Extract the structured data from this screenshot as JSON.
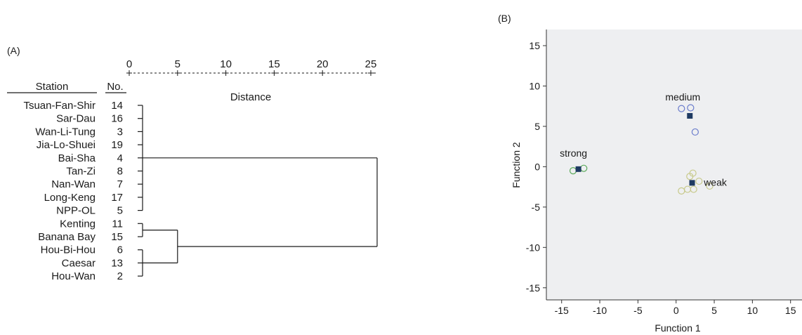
{
  "chart_data": [
    {
      "type": "dendrogram",
      "panel_label": "(A)",
      "xlabel": "Distance",
      "xticks": [
        0,
        5,
        10,
        15,
        20,
        25
      ],
      "xlim": [
        0,
        25
      ],
      "header_station": "Station",
      "header_no": "No.",
      "leaves": [
        {
          "station": "Tsuan-Fan-Shir",
          "no": "14"
        },
        {
          "station": "Sar-Dau",
          "no": "16"
        },
        {
          "station": "Wan-Li-Tung",
          "no": "3"
        },
        {
          "station": "Jia-Lo-Shuei",
          "no": "19"
        },
        {
          "station": "Bai-Sha",
          "no": "4"
        },
        {
          "station": "Tan-Zi",
          "no": "8"
        },
        {
          "station": "Nan-Wan",
          "no": "7"
        },
        {
          "station": "Long-Keng",
          "no": "17"
        },
        {
          "station": "NPP-OL",
          "no": "5"
        },
        {
          "station": "Kenting",
          "no": "11"
        },
        {
          "station": "Banana Bay",
          "no": "15"
        },
        {
          "station": "Hou-Bi-Hou",
          "no": "6"
        },
        {
          "station": "Caesar",
          "no": "13"
        },
        {
          "station": "Hou-Wan",
          "no": "2"
        }
      ],
      "merges": [
        {
          "leaves": [
            0,
            8
          ],
          "height": 0
        },
        {
          "leaves": [
            9,
            10
          ],
          "height": 0
        },
        {
          "leaves": [
            11,
            13
          ],
          "height": 0
        },
        {
          "leaves": [
            9,
            13
          ],
          "height": 5
        },
        {
          "leaves": [
            0,
            13
          ],
          "height": 25
        }
      ]
    },
    {
      "type": "scatter",
      "panel_label": "(B)",
      "xlabel": "Function 1",
      "ylabel": "Function 2",
      "xlim": [
        -17,
        16.5
      ],
      "ylim": [
        -16.5,
        17
      ],
      "xticks": [
        -15,
        -10,
        -5,
        0,
        5,
        10,
        15
      ],
      "yticks": [
        15,
        10,
        5,
        0,
        -5,
        -10,
        -15
      ],
      "background": "#eeeff1",
      "series": [
        {
          "name": "strong",
          "color": "#5aaa5a",
          "points": [
            [
              -13.5,
              -0.5
            ],
            [
              -12.1,
              -0.2
            ]
          ],
          "centroid": [
            -12.8,
            -0.3
          ]
        },
        {
          "name": "medium",
          "color": "#6a7ccc",
          "points": [
            [
              0.7,
              7.2
            ],
            [
              1.9,
              7.3
            ],
            [
              2.5,
              4.3
            ]
          ],
          "centroid": [
            1.8,
            6.3
          ]
        },
        {
          "name": "weak",
          "color": "#c7c98a",
          "points": [
            [
              0.7,
              -3.0
            ],
            [
              1.5,
              -2.8
            ],
            [
              2.3,
              -2.8
            ],
            [
              1.8,
              -1.2
            ],
            [
              2.2,
              -0.8
            ],
            [
              3.0,
              -1.8
            ],
            [
              4.4,
              -2.4
            ]
          ],
          "centroid": [
            2.1,
            -2.0
          ]
        }
      ],
      "centroid_color": "#1e3a62"
    }
  ]
}
